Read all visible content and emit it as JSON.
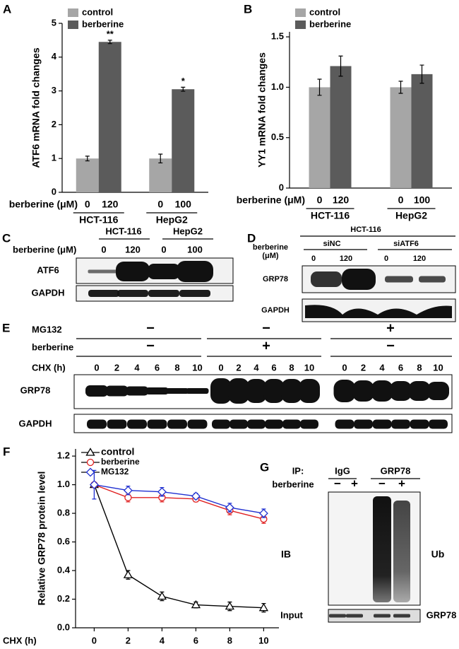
{
  "chart_data": [
    {
      "panel_label": "A",
      "type": "bar",
      "ylabel": "ATF6 mRNA fold changes",
      "categories": [
        "HCT-116",
        "HepG2"
      ],
      "series": [
        {
          "name": "control",
          "color": "#a6a6a6",
          "values": [
            1.0,
            1.0
          ],
          "errors": [
            0.07,
            0.13
          ]
        },
        {
          "name": "berberine",
          "color": "#5b5b5b",
          "values": [
            4.45,
            3.05
          ],
          "errors": [
            0.05,
            0.06
          ],
          "annotations": [
            "**",
            "*"
          ]
        }
      ],
      "xlabel": "berberine (μM)",
      "doses": [
        [
          "0",
          "120"
        ],
        [
          "0",
          "100"
        ]
      ],
      "ylim": [
        0,
        5
      ],
      "yticks": [
        0,
        1,
        2,
        3,
        4,
        5
      ]
    },
    {
      "panel_label": "B",
      "type": "bar",
      "ylabel": "YY1 mRNA fold changes",
      "categories": [
        "HCT-116",
        "HepG2"
      ],
      "series": [
        {
          "name": "control",
          "color": "#a6a6a6",
          "values": [
            1.0,
            1.0
          ],
          "errors": [
            0.08,
            0.06
          ]
        },
        {
          "name": "berberine",
          "color": "#5b5b5b",
          "values": [
            1.21,
            1.13
          ],
          "errors": [
            0.1,
            0.09
          ]
        }
      ],
      "xlabel": "berberine (μM)",
      "doses": [
        [
          "0",
          "120"
        ],
        [
          "0",
          "100"
        ]
      ],
      "ylim": [
        0,
        1.55
      ],
      "yticks": [
        0,
        0.5,
        {
          "value": 1,
          "label": "1.0"
        },
        1.5
      ]
    },
    {
      "panel_label": "F",
      "type": "line",
      "ylabel": "Relative GRP78 protein level",
      "xlabel": "CHX (h)",
      "x": [
        0,
        2,
        4,
        6,
        8,
        10
      ],
      "xlim": [
        -1.1,
        10.9
      ],
      "xticks": [
        0,
        2,
        4,
        6,
        8,
        10
      ],
      "ylim": [
        0,
        1.25
      ],
      "yticks": [
        {
          "value": 0,
          "label": "0.0"
        },
        0.2,
        0.4,
        0.6,
        0.8,
        {
          "value": 1,
          "label": "1.0"
        },
        1.2
      ],
      "legend": "top",
      "series": [
        {
          "name": "control",
          "color": "#000000",
          "marker": "triangle",
          "values": [
            1.0,
            0.37,
            0.22,
            0.16,
            0.15,
            0.14
          ],
          "errors": [
            0,
            0.03,
            0.03,
            0.02,
            0.03,
            0.03
          ]
        },
        {
          "name": "berberine",
          "color": "#e02020",
          "marker": "circle",
          "values": [
            1.0,
            0.91,
            0.91,
            0.9,
            0.82,
            0.76
          ],
          "errors": [
            0,
            0.03,
            0.03,
            0.02,
            0.03,
            0.03
          ]
        },
        {
          "name": "MG132",
          "color": "#1f2fd0",
          "marker": "diamond",
          "values": [
            1.0,
            0.96,
            0.95,
            0.92,
            0.84,
            0.8
          ],
          "errors": [
            0.1,
            0.03,
            0.03,
            0.02,
            0.03,
            0.03
          ]
        }
      ]
    }
  ],
  "blots": {
    "C": {
      "panel_label": "C",
      "groups": [
        "HCT-116",
        "HepG2"
      ],
      "treatment": "berberine (μM)",
      "doses": [
        "0",
        "120",
        "0",
        "100"
      ],
      "rows": [
        "ATF6",
        "GAPDH"
      ]
    },
    "D": {
      "panel_label": "D",
      "cell_line": "HCT-116",
      "groups": [
        "siNC",
        "siATF6"
      ],
      "treatment": [
        "berberine",
        "(μM)"
      ],
      "doses": [
        "0",
        "120",
        "0",
        "120"
      ],
      "rows": [
        "GRP78",
        "GAPDH"
      ]
    },
    "E": {
      "panel_label": "E",
      "conditions": [
        {
          "name": "MG132",
          "signs": [
            "−",
            "−",
            "+"
          ]
        },
        {
          "name": "berberine",
          "signs": [
            "−",
            "+",
            "−"
          ]
        }
      ],
      "time_label": "CHX (h)",
      "times": [
        "0",
        "2",
        "4",
        "6",
        "8",
        "10"
      ],
      "rows": [
        "GRP78",
        "GAPDH"
      ]
    },
    "G": {
      "panel_label": "G",
      "ip_label": "IP:",
      "groups": [
        "IgG",
        "GRP78"
      ],
      "treatment": "berberine",
      "signs": [
        "−",
        "+",
        "−",
        "+"
      ],
      "ib_label": "IB",
      "ib_target": "Ub",
      "input_label": "Input",
      "input_target": "GRP78"
    }
  }
}
